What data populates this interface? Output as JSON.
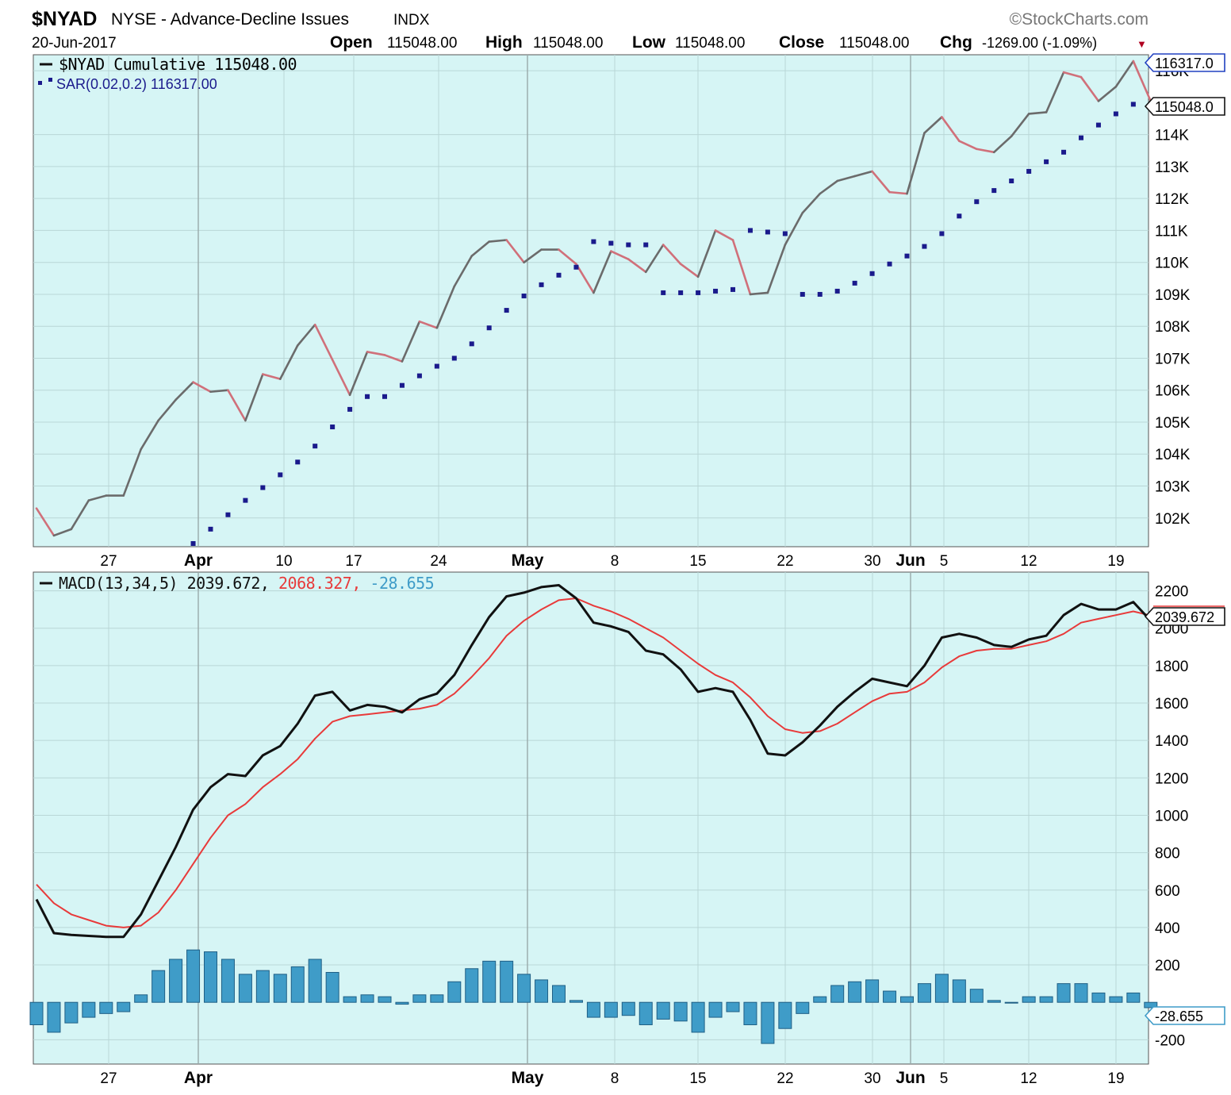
{
  "header": {
    "symbol": "$NYAD",
    "name": "NYSE - Advance-Decline Issues",
    "exchange": "INDX",
    "brand": "©StockCharts.com",
    "date": "20-Jun-2017",
    "open_label": "Open",
    "open_value": "115048.00",
    "high_label": "High",
    "high_value": "115048.00",
    "low_label": "Low",
    "low_value": "115048.00",
    "close_label": "Close",
    "close_value": "115048.00",
    "chg_label": "Chg",
    "chg_value": "-1269.00 (-1.09%)",
    "chg_arrow": "▼"
  },
  "colors": {
    "panel_bg": "#d6f5f5",
    "grid": "#b9d6d6",
    "line_up": "#6b6b6b",
    "line_down": "#d0707a",
    "sar": "#1a1a8c",
    "macd": "#111111",
    "signal": "#e83a3a",
    "histogram": "#3f9cc8",
    "histogram_edge": "#1f5f85"
  },
  "chart_data": [
    {
      "type": "line",
      "panel": "price",
      "legend": [
        {
          "label": "$NYAD Cumulative 115048.00"
        },
        {
          "label": "SAR(0.02,0.2) 116317.00"
        }
      ],
      "x_tick_labels": [
        "27",
        "Apr",
        "10",
        "17",
        "24",
        "May",
        "8",
        "15",
        "22",
        "30",
        "Jun",
        "5",
        "12",
        "19"
      ],
      "y_tick_labels": [
        "102K",
        "103K",
        "104K",
        "105K",
        "106K",
        "107K",
        "108K",
        "109K",
        "110K",
        "111K",
        "112K",
        "113K",
        "114K",
        "116K"
      ],
      "y_ticks": [
        102000,
        103000,
        104000,
        105000,
        106000,
        107000,
        108000,
        109000,
        110000,
        111000,
        112000,
        113000,
        114000,
        116000
      ],
      "ylim": [
        101100,
        116500
      ],
      "last_value_tags": [
        "116317.0",
        "115048.0"
      ],
      "series": [
        {
          "name": "$NYAD Cumulative",
          "values": [
            102300,
            101450,
            101650,
            102550,
            102700,
            102700,
            104150,
            105050,
            105700,
            106250,
            105950,
            106000,
            105050,
            106500,
            106350,
            107400,
            108050,
            106950,
            105850,
            107200,
            107100,
            106900,
            108150,
            107950,
            109250,
            110200,
            110650,
            110700,
            110000,
            110400,
            110400,
            109950,
            109050,
            110350,
            110100,
            109700,
            110550,
            109950,
            109550,
            111000,
            110700,
            109000,
            109050,
            110550,
            111550,
            112150,
            112550,
            112700,
            112850,
            112200,
            112150,
            114050,
            114550,
            113800,
            113550,
            113450,
            113950,
            114650,
            114700,
            115950,
            115800,
            115050,
            115500,
            116300,
            115048
          ]
        },
        {
          "name": "SAR",
          "values": [
            null,
            null,
            null,
            null,
            null,
            null,
            null,
            null,
            null,
            101200,
            101650,
            102100,
            102550,
            102950,
            103350,
            103750,
            104250,
            104850,
            105400,
            105800,
            105800,
            106150,
            106450,
            106750,
            107000,
            107450,
            107950,
            108500,
            108950,
            109300,
            109600,
            109850,
            110650,
            110600,
            110550,
            110550,
            109050,
            109050,
            109050,
            109100,
            109150,
            111000,
            110950,
            110900,
            109000,
            109000,
            109100,
            109350,
            109650,
            109950,
            110200,
            110500,
            110900,
            111450,
            111900,
            112250,
            112550,
            112850,
            113150,
            113450,
            113900,
            114300,
            114650,
            114950,
            116317
          ]
        }
      ]
    },
    {
      "type": "line",
      "panel": "macd",
      "legend": [
        {
          "label": "MACD(13,34,5) 2039.672",
          "sep": ", "
        },
        {
          "label": "2068.327",
          "sep": ", "
        },
        {
          "label": "-28.655"
        }
      ],
      "x_tick_labels": [
        "27",
        "Apr",
        "May",
        "8",
        "15",
        "22",
        "30",
        "Jun",
        "5",
        "12",
        "19"
      ],
      "y_tick_labels": [
        "-200",
        "200",
        "400",
        "600",
        "800",
        "1000",
        "1200",
        "1400",
        "1600",
        "1800",
        "2000",
        "2200"
      ],
      "y_ticks": [
        -200,
        200,
        400,
        600,
        800,
        1000,
        1200,
        1400,
        1600,
        1800,
        2000,
        2200
      ],
      "ylim": [
        -330,
        2300
      ],
      "last_value_tags": [
        "2039.672",
        "-28.655"
      ],
      "series": [
        {
          "name": "MACD",
          "values": [
            550,
            370,
            360,
            355,
            350,
            350,
            470,
            650,
            830,
            1030,
            1150,
            1220,
            1210,
            1320,
            1370,
            1490,
            1640,
            1660,
            1560,
            1590,
            1580,
            1550,
            1620,
            1650,
            1750,
            1910,
            2060,
            2170,
            2190,
            2220,
            2230,
            2160,
            2030,
            2010,
            1980,
            1880,
            1860,
            1780,
            1660,
            1680,
            1660,
            1510,
            1330,
            1320,
            1390,
            1480,
            1580,
            1660,
            1730,
            1710,
            1690,
            1800,
            1950,
            1970,
            1950,
            1910,
            1900,
            1940,
            1960,
            2070,
            2130,
            2100,
            2100,
            2140,
            2040
          ]
        },
        {
          "name": "Signal",
          "values": [
            630,
            530,
            470,
            440,
            410,
            400,
            410,
            480,
            600,
            740,
            880,
            1000,
            1060,
            1150,
            1220,
            1300,
            1410,
            1500,
            1530,
            1540,
            1550,
            1560,
            1570,
            1590,
            1650,
            1740,
            1840,
            1960,
            2040,
            2100,
            2150,
            2160,
            2120,
            2090,
            2050,
            2000,
            1950,
            1880,
            1810,
            1750,
            1710,
            1630,
            1530,
            1460,
            1440,
            1450,
            1490,
            1550,
            1610,
            1650,
            1660,
            1710,
            1790,
            1850,
            1880,
            1890,
            1890,
            1910,
            1930,
            1970,
            2030,
            2050,
            2070,
            2090,
            2068
          ]
        },
        {
          "name": "Histogram",
          "values": [
            -120,
            -160,
            -110,
            -80,
            -60,
            -50,
            40,
            170,
            230,
            280,
            270,
            230,
            150,
            170,
            150,
            190,
            230,
            160,
            30,
            40,
            30,
            -10,
            40,
            40,
            110,
            180,
            220,
            220,
            150,
            120,
            90,
            10,
            -80,
            -80,
            -70,
            -120,
            -90,
            -100,
            -160,
            -80,
            -50,
            -120,
            -220,
            -140,
            -60,
            30,
            90,
            110,
            120,
            60,
            30,
            100,
            150,
            120,
            70,
            10,
            0,
            30,
            30,
            100,
            100,
            50,
            30,
            50,
            -28.655
          ]
        }
      ]
    }
  ]
}
